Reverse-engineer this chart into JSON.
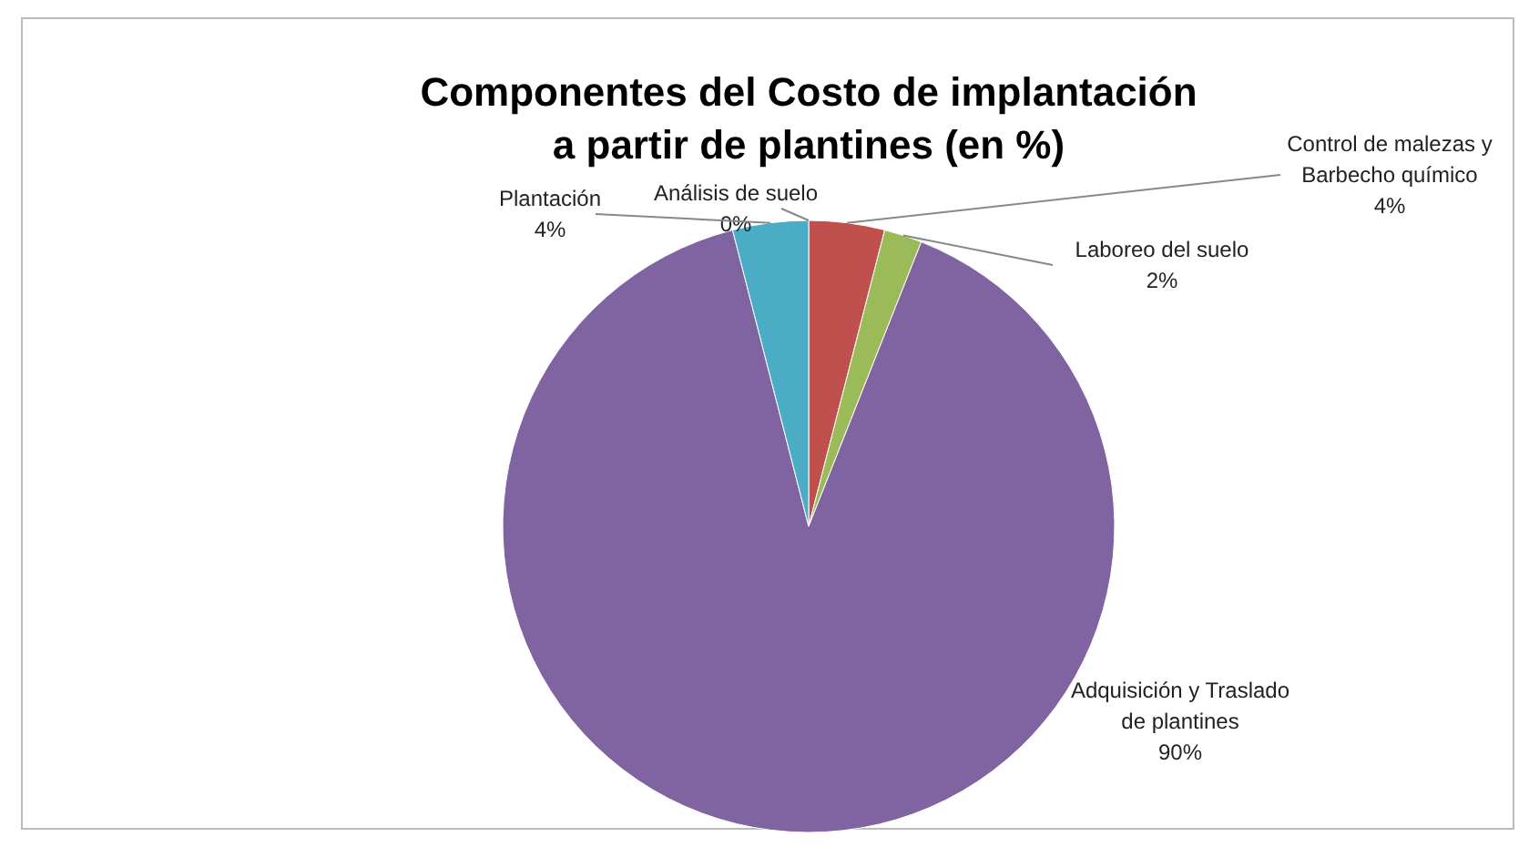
{
  "chart_data": {
    "type": "pie",
    "title": "Componentes del Costo de implantación\na partir de plantines (en %)",
    "categories": [
      "Análisis de suelo",
      "Control de malezas y Barbecho químico",
      "Laboreo del suelo",
      "Adquisición y Traslado de plantines",
      "Plantación"
    ],
    "values": [
      0,
      4,
      2,
      90,
      4
    ],
    "colors": [
      "#4f81bd",
      "#c0504d",
      "#9bbb59",
      "#8064a2",
      "#4bacc6"
    ],
    "value_labels": [
      "0%",
      "4%",
      "2%",
      "90%",
      "4%"
    ]
  }
}
